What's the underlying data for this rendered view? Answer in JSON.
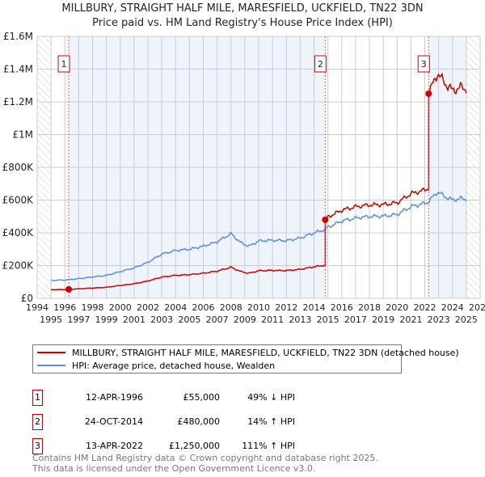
{
  "chart_data": {
    "type": "line",
    "title": "MILLBURY, STRAIGHT HALF MILE, MARESFIELD, UCKFIELD, TN22 3DN",
    "subtitle": "Price paid vs. HM Land Registry's House Price Index (HPI)",
    "xlim": [
      1994,
      2026
    ],
    "ylim": [
      0,
      1600000
    ],
    "x_ticks": [
      "1994",
      "1995",
      "1996",
      "1997",
      "1998",
      "1999",
      "2000",
      "2001",
      "2002",
      "2003",
      "2004",
      "2005",
      "2006",
      "2007",
      "2008",
      "2009",
      "2010",
      "2011",
      "2012",
      "2013",
      "2014",
      "2015",
      "2016",
      "2017",
      "2018",
      "2019",
      "2020",
      "2021",
      "2022",
      "2023",
      "2024",
      "2025",
      "2026"
    ],
    "y_ticks": [
      {
        "v": 0,
        "l": "£0"
      },
      {
        "v": 200000,
        "l": "£200K"
      },
      {
        "v": 400000,
        "l": "£400K"
      },
      {
        "v": 600000,
        "l": "£600K"
      },
      {
        "v": 800000,
        "l": "£800K"
      },
      {
        "v": 1000000,
        "l": "£1M"
      },
      {
        "v": 1200000,
        "l": "£1.2M"
      },
      {
        "v": 1400000,
        "l": "£1.4M"
      },
      {
        "v": 1600000,
        "l": "£1.6M"
      }
    ],
    "grid": true,
    "series": [
      {
        "name": "MILLBURY, STRAIGHT HALF MILE, MARESFIELD, UCKFIELD, TN22 3DN (detached house)",
        "color": "#cc0000"
      },
      {
        "name": "HPI: Average price, detached house, Wealden",
        "color": "#5b8fd6",
        "x": [
          1995,
          1996,
          1997,
          1998,
          1999,
          2000,
          2001,
          2002,
          2003,
          2004,
          2005,
          2006,
          2007,
          2008,
          2008.7,
          2009.3,
          2010,
          2011,
          2012,
          2013,
          2014,
          2014.8,
          2015,
          2016,
          2017,
          2018,
          2019,
          2020,
          2021,
          2022,
          2022.3,
          2022.9,
          2023.5,
          2024,
          2024.6,
          2025
        ],
        "y": [
          110000,
          112000,
          120000,
          130000,
          140000,
          163000,
          185000,
          220000,
          270000,
          292000,
          300000,
          318000,
          345000,
          395000,
          340000,
          318000,
          350000,
          355000,
          352000,
          368000,
          400000,
          420000,
          435000,
          472000,
          490000,
          500000,
          502000,
          512000,
          560000,
          580000,
          592000,
          650000,
          620000,
          600000,
          610000,
          605000
        ]
      }
    ],
    "sales": [
      {
        "n": "1",
        "x": 1996.28,
        "date": "12-APR-1996",
        "price": 55000,
        "price_label": "£55,000",
        "hpi": "49% ↓ HPI"
      },
      {
        "n": "2",
        "x": 2014.81,
        "date": "24-OCT-2014",
        "price": 480000,
        "price_label": "£480,000",
        "hpi": "14% ↑ HPI"
      },
      {
        "n": "3",
        "x": 2022.28,
        "date": "13-APR-2022",
        "price": 1250000,
        "price_label": "£1,250,000",
        "hpi": "111% ↑ HPI"
      }
    ]
  },
  "legend": {
    "red": "MILLBURY, STRAIGHT HALF MILE, MARESFIELD, UCKFIELD, TN22 3DN (detached house)",
    "blue": "HPI: Average price, detached house, Wealden"
  },
  "footer": {
    "line1": "Contains HM Land Registry data © Crown copyright and database right 2025.",
    "line2": "This data is licensed under the Open Government Licence v3.0."
  }
}
